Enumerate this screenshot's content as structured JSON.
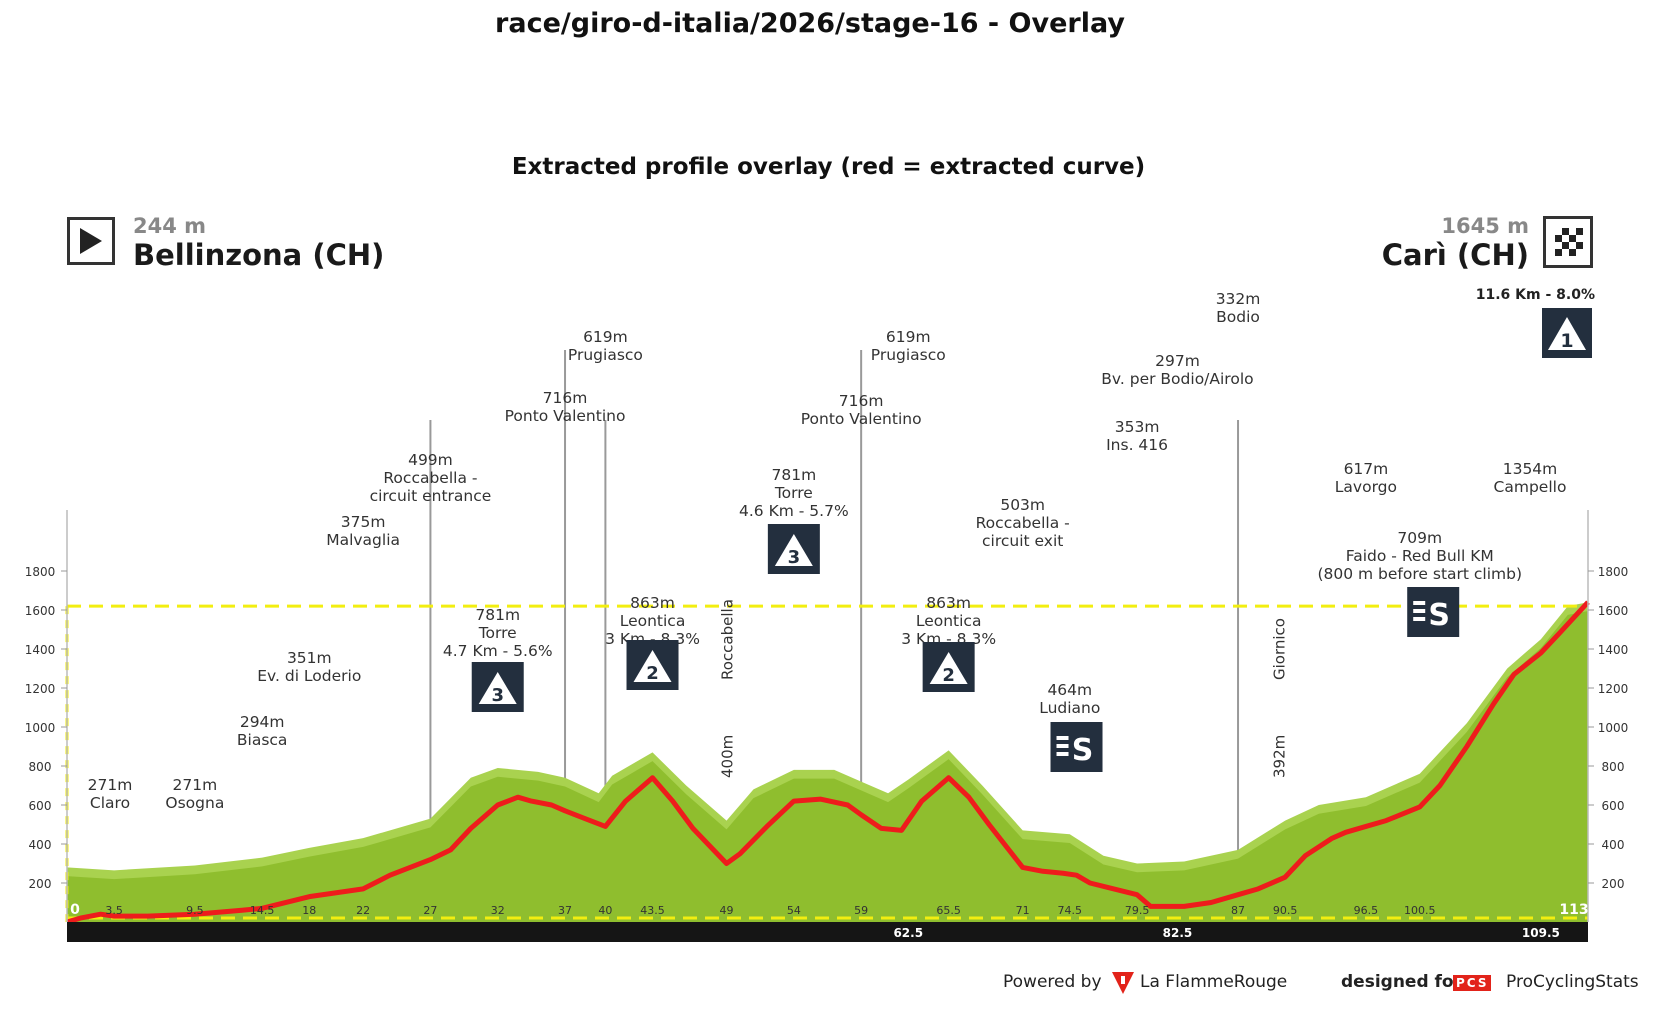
{
  "window": {
    "title": "race/giro-d-italia/2026/stage-16 - Overlay",
    "subtitle": "Extracted profile overlay (red = extracted curve)"
  },
  "header": {
    "start_alt": "244 m",
    "start_name": "Bellinzona (CH)",
    "end_alt": "1645 m",
    "end_name": "Carì (CH)",
    "final_climb": "11.6 Km - 8.0%",
    "final_climb_cat": "1"
  },
  "footer": {
    "powered": "Powered by",
    "brand": "La FlammeRouge",
    "designed": "designed for",
    "pcs": "PCS",
    "site": "ProCyclingStats"
  },
  "colors": {
    "terrain": "#8fbe2e",
    "terrain_light": "#a9d24f",
    "curve": "#ee1c1c",
    "guide": "#f2ee10",
    "badge": "#232f3e"
  },
  "chart_data": {
    "type": "area",
    "xlim": [
      0,
      113
    ],
    "ylim": [
      0,
      1800
    ],
    "yticks": [
      200,
      400,
      600,
      800,
      1000,
      1200,
      1400,
      1600,
      1800
    ],
    "xticks": [
      "0",
      "3.5",
      "9.5",
      "14.5",
      "18",
      "22",
      "27",
      "32",
      "37",
      "40",
      "43.5",
      "49",
      "54",
      "59",
      "65.5",
      "71",
      "74.5",
      "79.5",
      "87",
      "90.5",
      "96.5",
      "100.5",
      "113"
    ],
    "xticks_pos": [
      0,
      3.5,
      9.5,
      14.5,
      18,
      22,
      27,
      32,
      37,
      40,
      43.5,
      49,
      54,
      59,
      65.5,
      71,
      74.5,
      79.5,
      87,
      90.5,
      96.5,
      100.5,
      113
    ],
    "bottom_marks": [
      "62.5",
      "82.5",
      "109.5"
    ],
    "bottom_marks_pos": [
      62.5,
      82.5,
      109.5
    ],
    "reference_alt": 1620,
    "terrain": {
      "x": [
        0,
        3.5,
        9.5,
        14.5,
        18,
        22,
        27,
        30,
        32,
        35,
        37,
        39.5,
        40.5,
        43.5,
        46,
        49,
        51,
        54,
        57,
        59,
        61,
        62.5,
        65.5,
        68,
        71,
        74.5,
        77,
        79.5,
        83,
        87,
        90.5,
        93,
        96.5,
        100.5,
        104,
        107,
        109.5,
        111.5,
        113
      ],
      "y": [
        280,
        265,
        290,
        330,
        380,
        430,
        530,
        740,
        790,
        770,
        740,
        660,
        750,
        870,
        700,
        520,
        680,
        780,
        780,
        720,
        660,
        730,
        880,
        700,
        470,
        450,
        340,
        300,
        310,
        370,
        520,
        600,
        640,
        760,
        1020,
        1300,
        1450,
        1620,
        1640
      ]
    },
    "extracted": {
      "x": [
        0,
        1,
        2.5,
        3.5,
        6,
        9.5,
        13,
        14.5,
        18,
        22,
        24,
        27,
        28.5,
        30,
        32,
        33.5,
        34.5,
        36,
        37,
        38.5,
        40,
        41.5,
        43.5,
        45,
        46.5,
        49,
        50,
        52,
        54,
        56,
        58,
        59,
        60.5,
        62,
        63.5,
        65.5,
        67,
        68.5,
        71,
        72.5,
        74,
        75,
        76,
        79.5,
        80.5,
        83,
        85,
        87,
        88.5,
        90.5,
        92,
        94,
        95,
        96.5,
        98,
        100.5,
        102,
        104,
        106,
        107.5,
        109.5,
        111,
        113
      ],
      "y": [
        0,
        20,
        40,
        30,
        30,
        40,
        60,
        70,
        130,
        170,
        240,
        320,
        370,
        480,
        600,
        640,
        620,
        600,
        570,
        530,
        490,
        620,
        740,
        620,
        480,
        300,
        350,
        490,
        620,
        630,
        600,
        550,
        480,
        470,
        620,
        740,
        640,
        500,
        280,
        260,
        250,
        240,
        200,
        140,
        80,
        80,
        100,
        140,
        170,
        230,
        340,
        430,
        460,
        490,
        520,
        590,
        700,
        900,
        1120,
        1270,
        1380,
        1490,
        1640
      ]
    },
    "stems": [
      {
        "km": 27,
        "label_top": 499
      },
      {
        "km": 37,
        "label_top": 716
      },
      {
        "km": 40,
        "label_top": 619
      },
      {
        "km": 59,
        "label_top": 716
      },
      {
        "km": 87,
        "label_top": 332
      }
    ],
    "annotations": [
      {
        "km": 1.5,
        "alt": "271m",
        "name": "Claro",
        "line3": ""
      },
      {
        "km": 9.5,
        "alt": "271m",
        "name": "Osogna",
        "line3": ""
      },
      {
        "km": 14.5,
        "alt": "294m",
        "name": "Biasca",
        "line3": ""
      },
      {
        "km": 18,
        "alt": "351m",
        "name": "Ev. di Loderio",
        "line3": ""
      },
      {
        "km": 22,
        "alt": "375m",
        "name": "Malvaglia",
        "line3": ""
      },
      {
        "km": 27,
        "alt": "499m",
        "name": "Roccabella -",
        "line3": "circuit entrance"
      },
      {
        "km": 32,
        "alt": "781m",
        "name": "Torre",
        "line3": "4.7 Km - 5.6%"
      },
      {
        "km": 37,
        "alt": "716m",
        "name": "Ponto Valentino",
        "line3": ""
      },
      {
        "km": 40,
        "alt": "619m",
        "name": "Prugiasco",
        "line3": ""
      },
      {
        "km": 43.5,
        "alt": "863m",
        "name": "Leontica",
        "line3": "3 Km - 8.3%"
      },
      {
        "km": 54,
        "alt": "781m",
        "name": "Torre",
        "line3": "4.6 Km - 5.7%"
      },
      {
        "km": 59,
        "alt": "716m",
        "name": "Ponto Valentino",
        "line3": ""
      },
      {
        "km": 62.5,
        "alt": "619m",
        "name": "Prugiasco",
        "line3": ""
      },
      {
        "km": 65.5,
        "alt": "863m",
        "name": "Leontica",
        "line3": "3 Km - 8.3%"
      },
      {
        "km": 71,
        "alt": "503m",
        "name": "Roccabella -",
        "line3": "circuit exit"
      },
      {
        "km": 74.5,
        "alt": "464m",
        "name": "Ludiano",
        "line3": ""
      },
      {
        "km": 79.5,
        "alt": "353m",
        "name": "Ins. 416",
        "line3": ""
      },
      {
        "km": 82.5,
        "alt": "297m",
        "name": "Bv. per Bodio/Airolo",
        "line3": ""
      },
      {
        "km": 87,
        "alt": "332m",
        "name": "Bodio",
        "line3": ""
      },
      {
        "km": 96.5,
        "alt": "617m",
        "name": "Lavorgo",
        "line3": ""
      },
      {
        "km": 100.5,
        "alt": "709m",
        "name": "Faido - Red Bull KM",
        "line3": "(800 m before start climb)"
      },
      {
        "km": 109.5,
        "alt": "1354m",
        "name": "Campello",
        "line3": ""
      }
    ],
    "vertical_labels": [
      {
        "km": 49,
        "text": "Roccabella",
        "alt_text": "400m"
      },
      {
        "km": 90,
        "text": "Giornico",
        "alt_text": "392m"
      }
    ],
    "badges": [
      {
        "km": 32,
        "label": "3",
        "kind": "climb"
      },
      {
        "km": 43.5,
        "label": "2",
        "kind": "climb"
      },
      {
        "km": 54,
        "label": "3",
        "kind": "climb"
      },
      {
        "km": 65.5,
        "label": "2",
        "kind": "climb"
      },
      {
        "km": 75,
        "label": "S",
        "kind": "sprint"
      },
      {
        "km": 101.5,
        "label": "S",
        "kind": "sprint"
      }
    ]
  }
}
